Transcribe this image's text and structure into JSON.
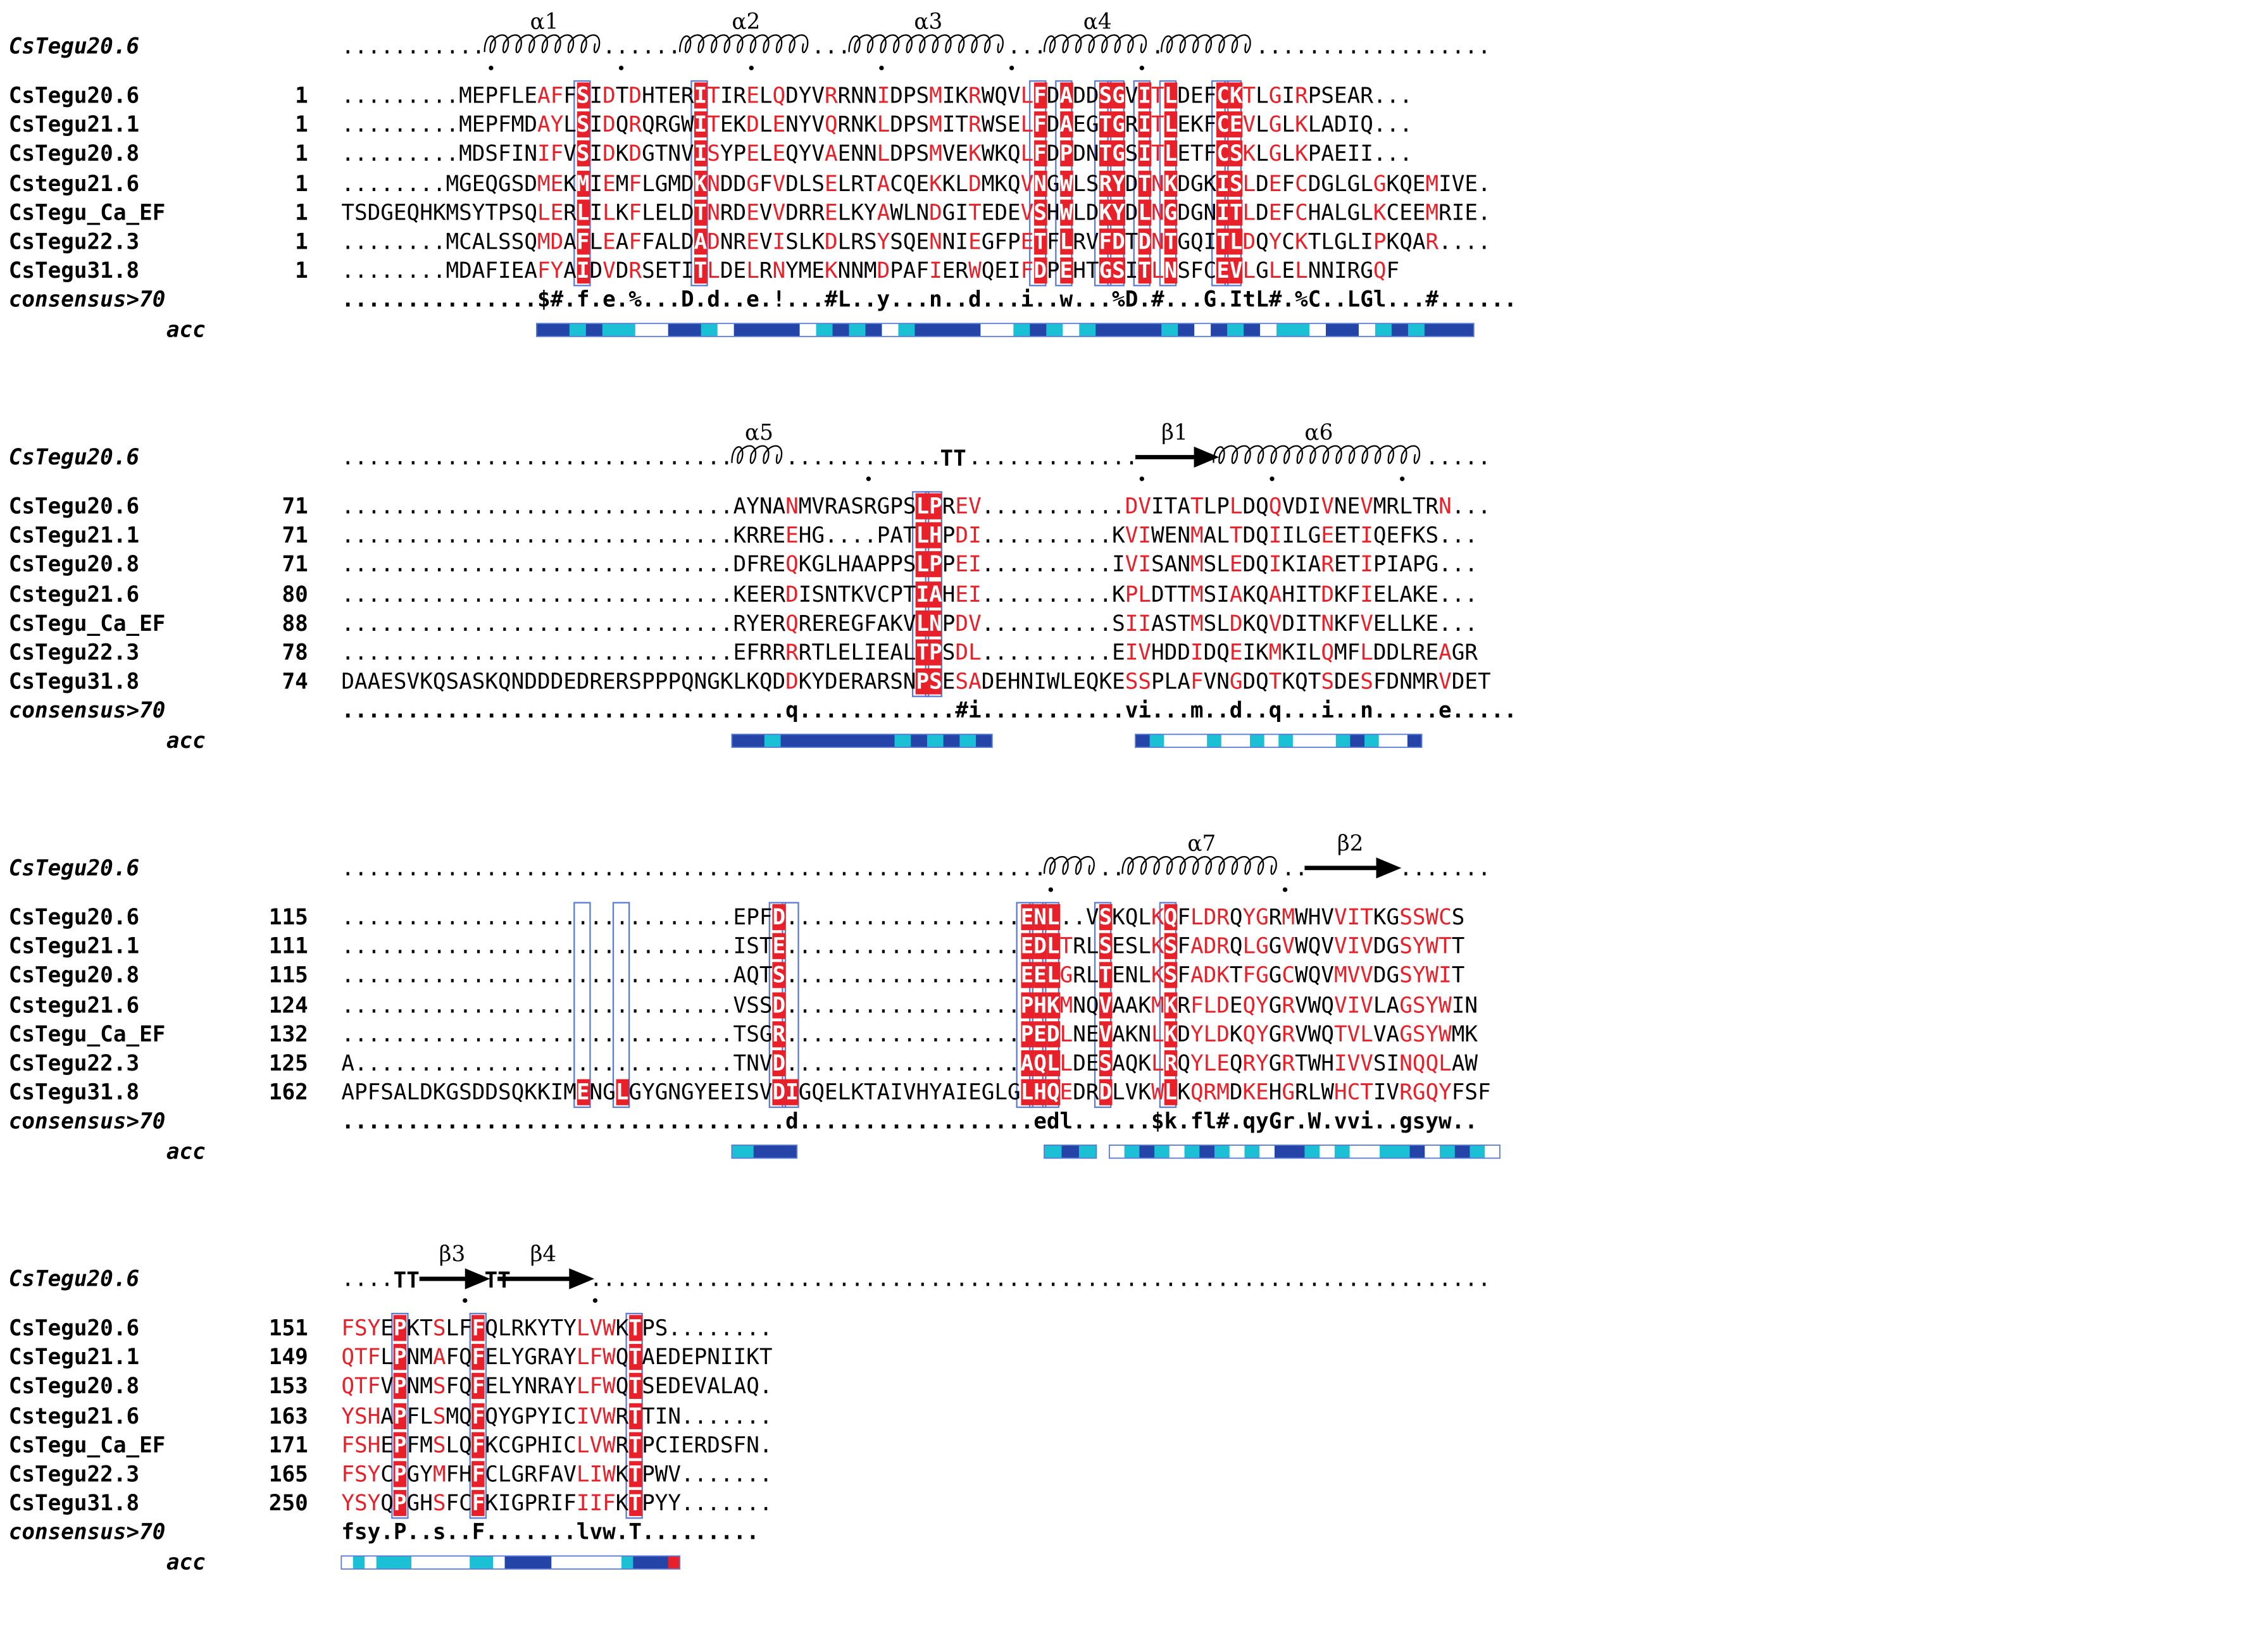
{
  "ref_name": "CsTegu20.6",
  "blocks": [
    {
      "start": 236,
      "ss": [
        {
          "type": "helix",
          "label": "α1",
          "from": 11,
          "to": 19
        },
        {
          "type": "helix",
          "label": "α2",
          "from": 26,
          "to": 35
        },
        {
          "type": "helix",
          "label": "α3",
          "from": 39,
          "to": 50
        },
        {
          "type": "helix",
          "label": "α4",
          "from": 54,
          "to": 61
        },
        {
          "type": "helix",
          "label": "",
          "from": 63,
          "to": 69
        }
      ],
      "dots": [
        11,
        21,
        31,
        41,
        51,
        61
      ],
      "rows": [
        {
          "name": "CsTegu20.6",
          "num": "1",
          "seq": ".........MEPFLEAFFSIDTDHTERITIRELQDYVRRNNIDPSMIKRWQVLFDADDSGVITLDEFCKTLGIRPSEAR..."
        },
        {
          "name": "CsTegu21.1",
          "num": "1",
          "seq": ".........MEPFMDAYLSIDQRQRGWITEKDLENYVQRNKLDPSMITRWSELFDAEGTGRITLEKFCEVLGLKLADIQ..."
        },
        {
          "name": "CsTegu20.8",
          "num": "1",
          "seq": ".........MDSFINIFVSIDKDGTNVISYPELEQYVAENNLDPSMVEKWKQLFDPDNTGSITLETFCSKLGLKPAEII..."
        },
        {
          "name": "Cstegu21.6",
          "num": "1",
          "seq": "........MGEQGSDMEKMIEMFLGMDKNDDGFVDLSELRTACQEKKLDMKQVNGWLSRYDTNKDGKISLDEFCDGLGLGKQEMIVE."
        },
        {
          "name": "CsTegu_Ca_EF",
          "num": "1",
          "seq": "TSDGEQHKMSYTPSQLERLILKFLELDTNRDEVVDRRELKYAWLNDGITEDEVSHWLDKYDLNGDGNITLDEFCHALGLKCEEMRIE."
        },
        {
          "name": "CsTegu22.3",
          "num": "1",
          "seq": "........MCALSSQMDAFLEAFFALDADNREVISLKDLRSYSQENNIEGFPETFLRVFDTDNTGQITLDQYCKTLGLIPKQAR...."
        },
        {
          "name": "CsTegu31.8",
          "num": "1",
          "seq": "........MDAFIEAFYAIDVDRSETITLDELRNYMEKNNMDPAFIERWQEIFDPEHTGSITLNSFCEVLGLELNNIRGQF"
        }
      ],
      "consensus": {
        "name": "consensus>70",
        "seq": "...............$#.f.e.%...D.d..e.!...#L..y...n..d...i..w...%D.#...G.ItL#.%C..LGl...#......"
      },
      "acc": {
        "name": "acc",
        "from": 15,
        "to": 86,
        "pattern": "ddcdccwwddcwddddwcdcdwcddddwwcdcwcddddcdwdcdwccwddwcdcddd"
      }
    },
    {
      "start": 236,
      "ss": [
        {
          "type": "helix",
          "label": "α5",
          "from": 30,
          "to": 33
        },
        {
          "type": "turn",
          "label": "",
          "from": 46,
          "to": 47
        },
        {
          "type": "strand",
          "label": "β1",
          "from": 61,
          "to": 66
        },
        {
          "type": "helix",
          "label": "α6",
          "from": 67,
          "to": 82
        }
      ],
      "dots": [
        40,
        61,
        71,
        81
      ],
      "rows": [
        {
          "name": "CsTegu20.6",
          "num": "71",
          "seq": "..............................AYNANMVRASRGPSLPREV...........DVITATLPLDQQVDIVNEVMRLTRN..."
        },
        {
          "name": "CsTegu21.1",
          "num": "71",
          "seq": "..............................KRREEHG....PATLHPDI..........KVIWENMALTDQIILGEETIQEFKS..."
        },
        {
          "name": "CsTegu20.8",
          "num": "71",
          "seq": "..............................DFREQKGLHAAPPSLPPEI..........IVISANMSLEDQIKIARETIPIAPG..."
        },
        {
          "name": "Cstegu21.6",
          "num": "80",
          "seq": "..............................KEERDISNTKVCPTIAHEI..........KPLDTTMSIAKQAHITDKFIELAKE..."
        },
        {
          "name": "CsTegu_Ca_EF",
          "num": "88",
          "seq": "..............................RYERQREREGFAKVLNPDV..........SIIASTMSLDKQVDITNKFVELLKE..."
        },
        {
          "name": "CsTegu22.3",
          "num": "78",
          "seq": "..............................EFRRRRTLELIEALTPSDL..........EIVHDDIDQEIKMKILQMFLDDLREAGR"
        },
        {
          "name": "CsTegu31.8",
          "num": "74",
          "seq": "DAAESVKQSASKQNDDDEDRERSPPPQNGKLKQDDKYDERARSNPSESADEHNIWLEQKESSPLAFVNGDQTKQTSDESFDNMRVDET"
        }
      ],
      "consensus": {
        "name": "consensus>70",
        "seq": "..................................q............#i...........vi...m..d..q...i..n.....e....."
      },
      "acc": {
        "name": "acc",
        "from": 30,
        "to": 49,
        "pattern": "ddcdddddddcdcdcd",
        "from2": 61,
        "to2": 82,
        "pattern2": "dcwwwcwwcwcwwwcdcwwd"
      }
    },
    {
      "start": 236,
      "ss": [
        {
          "type": "helix",
          "label": "",
          "from": 54,
          "to": 57
        },
        {
          "type": "helix",
          "label": "α7",
          "from": 60,
          "to": 71
        },
        {
          "type": "strand",
          "label": "β2",
          "from": 74,
          "to": 80
        }
      ],
      "dots": [
        54,
        72
      ],
      "rows": [
        {
          "name": "CsTegu20.6",
          "num": "115",
          "seq": "..............................EPFD..................ENL..VSKQLKQFLDRQYGRMWHVVITKGSSWCS"
        },
        {
          "name": "CsTegu21.1",
          "num": "111",
          "seq": "..............................ISTE..................EDLTRLSESLKSFADRQLGGVWQVVIVDGSYWTT"
        },
        {
          "name": "CsTegu20.8",
          "num": "115",
          "seq": "..............................AQTS..................EELGRLTENLKSFADKTFGGCWQVMVVDGSYWIT"
        },
        {
          "name": "Cstegu21.6",
          "num": "124",
          "seq": "..............................VSSD..................PHKMNQVAAKMKRFLDEQYGRVWQVIVLAGSYWIN"
        },
        {
          "name": "CsTegu_Ca_EF",
          "num": "132",
          "seq": "..............................TSGR..................PEDLNEVAKNLKDYLDKQYGRVWQTVLVAGSYWMK"
        },
        {
          "name": "CsTegu22.3",
          "num": "125",
          "seq": "A.............................TNVD..................AQLLDESAQKLRQYLEQRYGRTWHIVVSINQQLAW"
        },
        {
          "name": "CsTegu31.8",
          "num": "162",
          "seq": "APFSALDKGSDDSQKKIMENGLGYGNGYEEISVDIGQELKTAIVHYAIEGLGLHQEDRDLVKWLKQRMDKEHGRLWHCTIVRGQYFSF"
        }
      ],
      "consensus": {
        "name": "consensus>70",
        "seq": "..................................d..................edl......$k.fl#.qyGr.W.vvi..gsyw.."
      },
      "acc": {
        "name": "acc",
        "from": 30,
        "to": 34,
        "pattern": "cdd",
        "from2": 54,
        "to2": 57,
        "pattern2": "cdc",
        "from3": 59,
        "to3": 88,
        "pattern3": "wcdcwcdcwcwddcwcwwccdwcdcw"
      }
    },
    {
      "start": 236,
      "ss": [
        {
          "type": "turn",
          "label": "",
          "from": 4,
          "to": 5
        },
        {
          "type": "strand",
          "label": "β3",
          "from": 6,
          "to": 10
        },
        {
          "type": "turn",
          "label": "",
          "from": 11,
          "to": 12
        },
        {
          "type": "strand",
          "label": "β4",
          "from": 12,
          "to": 18
        }
      ],
      "dots": [
        9,
        19
      ],
      "rows": [
        {
          "name": "CsTegu20.6",
          "num": "151",
          "seq": "FSYEPKTSLFFQLRKYTYLVWKTPS........"
        },
        {
          "name": "CsTegu21.1",
          "num": "149",
          "seq": "QTFLPNMAFQFELYGRAYLFWQTAEDEPNIIKT"
        },
        {
          "name": "CsTegu20.8",
          "num": "153",
          "seq": "QTFVPNMSFQFELYNRAYLFWQTSEDEVALAQ."
        },
        {
          "name": "Cstegu21.6",
          "num": "163",
          "seq": "YSHAPFLSMQFQYGPYICIVWRTTIN......."
        },
        {
          "name": "CsTegu_Ca_EF",
          "num": "171",
          "seq": "FSHEPFMSLQFKCGPHICLVWRTPCIERDSFN."
        },
        {
          "name": "CsTegu22.3",
          "num": "165",
          "seq": "FSYCPGYMFHFCLGRFAVLIWKTPWV......."
        },
        {
          "name": "CsTegu31.8",
          "num": "250",
          "seq": "YSYQPGHSFCFKIGPRIFIIFKTPYY......."
        }
      ],
      "consensus": {
        "name": "consensus>70",
        "seq": "fsy.P..s..F.......lvw.T........."
      },
      "acc": {
        "name": "acc",
        "from": 0,
        "to": 25,
        "pattern": "wcwcccwwwwwccwddddwwwwwwcdddr"
      }
    }
  ],
  "colors": {
    "red": "#e8202a",
    "box": "#5b7bd5",
    "dark": "#2444a8",
    "cyan": "#1cc0d4",
    "white": "#ffffff"
  },
  "cons_cols": [
    [
      18,
      27,
      53,
      55,
      58,
      59,
      61,
      63,
      67,
      68
    ],
    [
      44,
      45
    ],
    [
      18,
      21,
      33,
      34,
      52,
      53,
      54,
      58,
      63
    ],
    [
      4,
      10,
      22
    ]
  ]
}
